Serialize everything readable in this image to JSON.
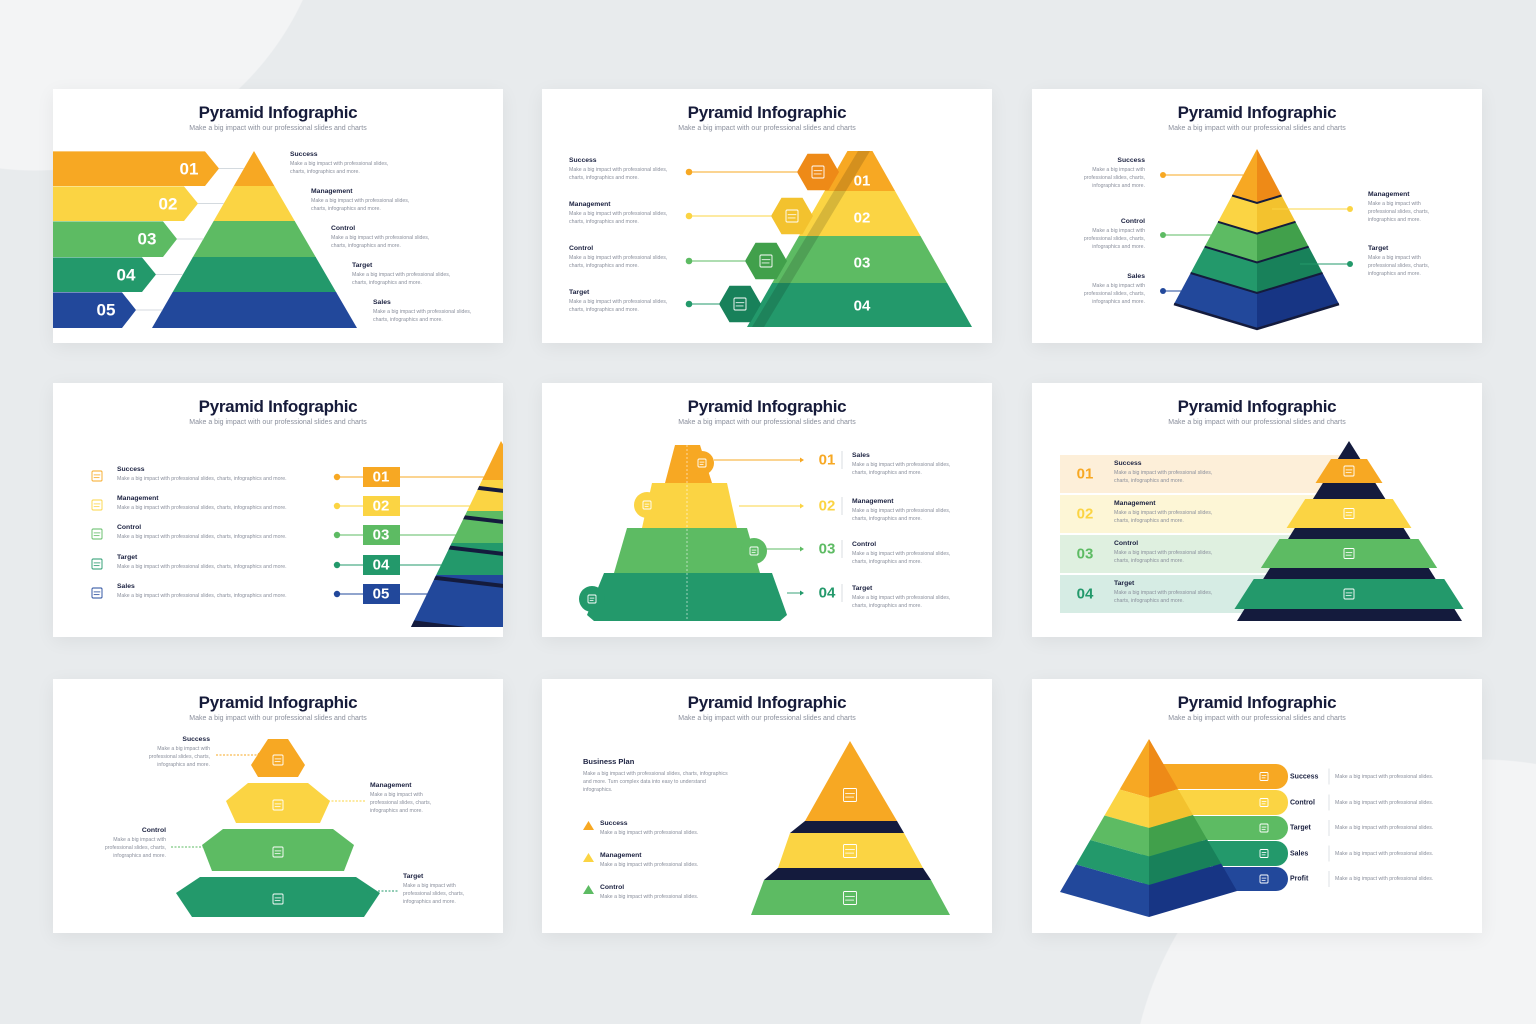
{
  "colors": {
    "orange": "#F7A823",
    "yellow": "#FBD443",
    "green": "#5DBB63",
    "teal": "#23996B",
    "blue": "#22489B",
    "navy": "#141B3D",
    "orange_dark": "#EE8A17",
    "yellow_dark": "#F3C22E",
    "green_dark": "#41A04B",
    "teal_dark": "#18815A",
    "blue_dark": "#173584",
    "background": "#E8EBED"
  },
  "slides": [
    {
      "title": "Pyramid Infographic",
      "subtitle": "Make a big impact with our professional slides and charts",
      "numbers": [
        "01",
        "02",
        "03",
        "04",
        "05"
      ],
      "items": [
        {
          "label": "Success",
          "desc": "Make a big impact with professional slides, charts, infographics and more."
        },
        {
          "label": "Management",
          "desc": "Make a big impact with professional slides, charts, infographics and more."
        },
        {
          "label": "Control",
          "desc": "Make a big impact with professional slides, charts, infographics and more."
        },
        {
          "label": "Target",
          "desc": "Make a big impact with professional slides, charts, infographics and more."
        },
        {
          "label": "Sales",
          "desc": "Make a big impact with professional slides, charts, infographics and more."
        }
      ]
    },
    {
      "title": "Pyramid Infographic",
      "subtitle": "Make a big impact with our professional slides and charts",
      "numbers": [
        "01",
        "02",
        "03",
        "04"
      ],
      "icons": [
        "clipboard-icon",
        "documents-icon",
        "box-icon",
        "image-icon"
      ],
      "items": [
        {
          "label": "Success",
          "desc": "Make a big impact with professional slides, charts, infographics and more."
        },
        {
          "label": "Management",
          "desc": "Make a big impact with professional slides, charts, infographics and more."
        },
        {
          "label": "Control",
          "desc": "Make a big impact with professional slides, charts, infographics and more."
        },
        {
          "label": "Target",
          "desc": "Make a big impact with professional slides, charts, infographics and more."
        }
      ]
    },
    {
      "title": "Pyramid Infographic",
      "subtitle": "Make a big impact with our professional slides and charts",
      "items": [
        {
          "label": "Success",
          "desc": "Make a big impact with professional slides, charts, infographics and more."
        },
        {
          "label": "Management",
          "desc": "Make a big impact with professional slides, charts, infographics and more."
        },
        {
          "label": "Control",
          "desc": "Make a big impact with professional slides, charts, infographics and more."
        },
        {
          "label": "Target",
          "desc": "Make a big impact with professional slides, charts, infographics and more."
        },
        {
          "label": "Sales",
          "desc": "Make a big impact with professional slides, charts, infographics and more."
        }
      ]
    },
    {
      "title": "Pyramid Infographic",
      "subtitle": "Make a big impact with our professional slides and charts",
      "numbers": [
        "01",
        "02",
        "03",
        "04",
        "05"
      ],
      "icons": [
        "clipboard-icon",
        "documents-icon",
        "box-icon",
        "image-icon",
        "sliders-icon"
      ],
      "items": [
        {
          "label": "Success",
          "desc": "Make a big impact with professional slides, charts, infographics and more."
        },
        {
          "label": "Management",
          "desc": "Make a big impact with professional slides, charts, infographics and more."
        },
        {
          "label": "Control",
          "desc": "Make a big impact with professional slides, charts, infographics and more."
        },
        {
          "label": "Target",
          "desc": "Make a big impact with professional slides, charts, infographics and more."
        },
        {
          "label": "Sales",
          "desc": "Make a big impact with professional slides, charts, infographics and more."
        }
      ]
    },
    {
      "title": "Pyramid Infographic",
      "subtitle": "Make a big impact with our professional slides and charts",
      "numbers": [
        "01",
        "02",
        "03",
        "04"
      ],
      "items": [
        {
          "label": "Sales",
          "desc": "Make a big impact with professional slides, charts, infographics and more."
        },
        {
          "label": "Management",
          "desc": "Make a big impact with professional slides, charts, infographics and more."
        },
        {
          "label": "Control",
          "desc": "Make a big impact with professional slides, charts, infographics and more."
        },
        {
          "label": "Target",
          "desc": "Make a big impact with professional slides, charts, infographics and more."
        }
      ]
    },
    {
      "title": "Pyramid Infographic",
      "subtitle": "Make a big impact with our professional slides and charts",
      "numbers": [
        "01",
        "02",
        "03",
        "04"
      ],
      "items": [
        {
          "label": "Success",
          "desc": "Make a big impact with professional slides, charts, infographics and more."
        },
        {
          "label": "Management",
          "desc": "Make a big impact with professional slides, charts, infographics and more."
        },
        {
          "label": "Control",
          "desc": "Make a big impact with professional slides, charts, infographics and more."
        },
        {
          "label": "Target",
          "desc": "Make a big impact with professional slides, charts, infographics and more."
        }
      ]
    },
    {
      "title": "Pyramid Infographic",
      "subtitle": "Make a big impact with our professional slides and charts",
      "items": [
        {
          "label": "Success",
          "desc": "Make a big impact with professional slides, charts, infographics and more."
        },
        {
          "label": "Management",
          "desc": "Make a big impact with professional slides, charts, infographics and more."
        },
        {
          "label": "Control",
          "desc": "Make a big impact with professional slides, charts, infographics and more."
        },
        {
          "label": "Target",
          "desc": "Make a big impact with professional slides, charts, infographics and more."
        }
      ]
    },
    {
      "title": "Pyramid Infographic",
      "subtitle": "Make a big impact with our professional slides and charts",
      "business_plan": {
        "label": "Business Plan",
        "desc": "Make a big impact with professional slides, charts, infographics and more. Turn complex data into easy to understand infographics."
      },
      "items": [
        {
          "label": "Success",
          "desc": "Make a big impact with professional slides."
        },
        {
          "label": "Management",
          "desc": "Make a big impact with professional slides."
        },
        {
          "label": "Control",
          "desc": "Make a big impact with professional slides."
        }
      ]
    },
    {
      "title": "Pyramid Infographic",
      "subtitle": "Make a big impact with our professional slides and charts",
      "items": [
        {
          "label": "Success",
          "desc": "Make a big impact with professional slides."
        },
        {
          "label": "Control",
          "desc": "Make a big impact with professional slides."
        },
        {
          "label": "Target",
          "desc": "Make a big impact with professional slides."
        },
        {
          "label": "Sales",
          "desc": "Make a big impact with professional slides."
        },
        {
          "label": "Profit",
          "desc": "Make a big impact with professional slides."
        }
      ]
    }
  ]
}
